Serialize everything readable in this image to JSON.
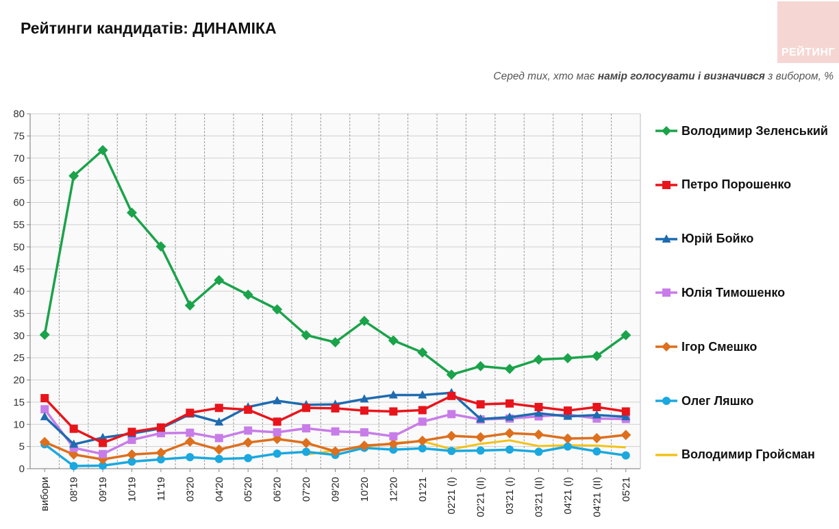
{
  "header": {
    "title": "Рейтинги кандидатів: ДИНАМІКА",
    "logo_text": "РЕЙТИНГ",
    "subtitle_pre": "Серед тих, хто має ",
    "subtitle_bold": "намір голосувати і визначився",
    "subtitle_post": " з вибором, %"
  },
  "colors": {
    "zelensky": "#1aa34a",
    "poroshenko": "#e8141b",
    "boyko": "#1e6bb0",
    "tymoshenko": "#c87ce8",
    "smeshko": "#dd6f1d",
    "lyashko": "#1aa8df",
    "groysman": "#f2c21b"
  },
  "chart_data": {
    "type": "line",
    "title": "Рейтинги кандидатів: ДИНАМІКА",
    "xlabel": "",
    "ylabel": "",
    "ylim": [
      0,
      80
    ],
    "yticks": [
      0,
      5,
      10,
      15,
      20,
      25,
      30,
      35,
      40,
      45,
      50,
      55,
      60,
      65,
      70,
      75,
      80
    ],
    "grid": true,
    "legend": "right",
    "categories": [
      "вибори",
      "08'19",
      "09'19",
      "10'19",
      "11'19",
      "03'20",
      "04'20",
      "05'20",
      "06'20",
      "07'20",
      "09'20",
      "10'20",
      "12'20",
      "01'21",
      "02'21 (I)",
      "02'21 (II)",
      "03'21 (I)",
      "03'21 (II)",
      "04'21 (I)",
      "04'21 (II)",
      "05'21"
    ],
    "series": [
      {
        "name": "Володимир Зеленський",
        "key": "zelensky",
        "marker": "diamond",
        "values": [
          30.2,
          66.0,
          71.8,
          57.7,
          50.1,
          36.8,
          42.5,
          39.2,
          35.9,
          30.1,
          28.5,
          33.3,
          28.9,
          26.2,
          21.2,
          23.1,
          22.5,
          24.6,
          24.9,
          25.4,
          30.1
        ]
      },
      {
        "name": "Петро Порошенко",
        "key": "poroshenko",
        "marker": "square",
        "values": [
          15.9,
          9.0,
          5.8,
          8.3,
          9.3,
          12.6,
          13.7,
          13.3,
          10.6,
          13.7,
          13.6,
          13.1,
          12.9,
          13.2,
          16.4,
          14.5,
          14.7,
          13.9,
          13.1,
          13.9,
          12.9
        ]
      },
      {
        "name": "Юрій Бойко",
        "key": "boyko",
        "marker": "triangle",
        "values": [
          11.7,
          5.5,
          7.0,
          7.9,
          9.1,
          12.3,
          10.5,
          13.9,
          15.3,
          14.4,
          14.5,
          15.7,
          16.6,
          16.6,
          17.1,
          11.2,
          11.6,
          12.5,
          11.8,
          12.1,
          11.7
        ]
      },
      {
        "name": "Юлія Тимошенко",
        "key": "tymoshenko",
        "marker": "square",
        "values": [
          13.4,
          4.7,
          3.3,
          6.5,
          8.0,
          8.1,
          6.9,
          8.6,
          8.2,
          9.1,
          8.4,
          8.2,
          7.3,
          10.6,
          12.3,
          11.1,
          11.3,
          11.8,
          12.2,
          11.3,
          11.2
        ]
      },
      {
        "name": "Ігор Смешко",
        "key": "smeshko",
        "marker": "diamond",
        "values": [
          6.0,
          3.2,
          2.1,
          3.2,
          3.6,
          6.1,
          4.3,
          5.9,
          6.7,
          5.8,
          3.9,
          5.2,
          5.6,
          6.3,
          7.4,
          7.1,
          8.0,
          7.7,
          6.8,
          6.9,
          7.6
        ]
      },
      {
        "name": "Олег Ляшко",
        "key": "lyashko",
        "marker": "circle",
        "values": [
          5.5,
          0.6,
          0.7,
          1.6,
          2.1,
          2.6,
          2.2,
          2.4,
          3.4,
          3.8,
          3.1,
          4.7,
          4.3,
          4.6,
          4.0,
          4.1,
          4.3,
          3.8,
          5.0,
          3.9,
          3.0
        ]
      },
      {
        "name": "Володимир Гройсман",
        "key": "groysman",
        "marker": "none",
        "values": [
          null,
          null,
          null,
          null,
          null,
          null,
          null,
          null,
          null,
          3.2,
          4.1,
          4.9,
          5.8,
          6.2,
          4.4,
          5.6,
          6.4,
          5.1,
          5.3,
          5.2,
          4.8
        ]
      }
    ]
  }
}
